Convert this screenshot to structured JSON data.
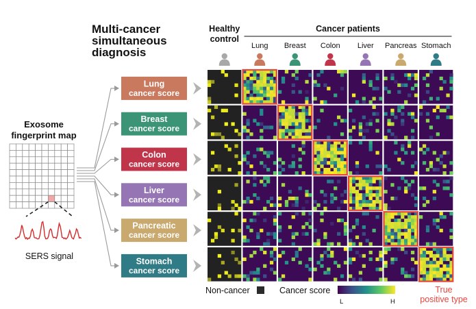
{
  "title": {
    "line1": "Multi-cancer",
    "line2": "simultaneous",
    "line3": "diagnosis"
  },
  "fingerprint": {
    "title_line1": "Exosome",
    "title_line2": "fingerprint map",
    "signal_label": "SERS signal",
    "highlight_color": "#f2a7a7",
    "signal_color": "#d62a2a"
  },
  "scores": [
    {
      "line1": "Lung",
      "line2": "cancer score",
      "color": "#c9795d"
    },
    {
      "line1": "Breast",
      "line2": "cancer score",
      "color": "#3a9475"
    },
    {
      "line1": "Colon",
      "line2": "cancer score",
      "color": "#c0354a"
    },
    {
      "line1": "Liver",
      "line2": "cancer score",
      "color": "#9575b3"
    },
    {
      "line1": "Pancreatic",
      "line2": "cancer score",
      "color": "#c9a96e"
    },
    {
      "line1": "Stomach",
      "line2": "cancer score",
      "color": "#2f7c87"
    }
  ],
  "columns": {
    "healthy_line1": "Healthy",
    "healthy_line2": "control",
    "cancer_header": "Cancer patients",
    "names": [
      "Lung",
      "Breast",
      "Colon",
      "Liver",
      "Pancreas",
      "Stomach"
    ],
    "person_colors": [
      "#a8a8a8",
      "#c9795d",
      "#3a9475",
      "#c0354a",
      "#9575b3",
      "#c9a96e",
      "#2f7c87"
    ]
  },
  "legend": {
    "noncancer_label": "Non-cancer",
    "noncancer_color": "#2b2b2b",
    "score_label": "Cancer score",
    "low_label": "L",
    "high_label": "H",
    "colormap": [
      "#440154",
      "#3b528b",
      "#21918c",
      "#5ec962",
      "#fde725"
    ]
  },
  "true_positive": {
    "line1": "True",
    "line2": "positive type",
    "color": "#e8463d"
  },
  "colors": {
    "cell_background": "#3d0a56",
    "healthy_background": "#222222",
    "arrow_gray": "#9a9a9a"
  }
}
